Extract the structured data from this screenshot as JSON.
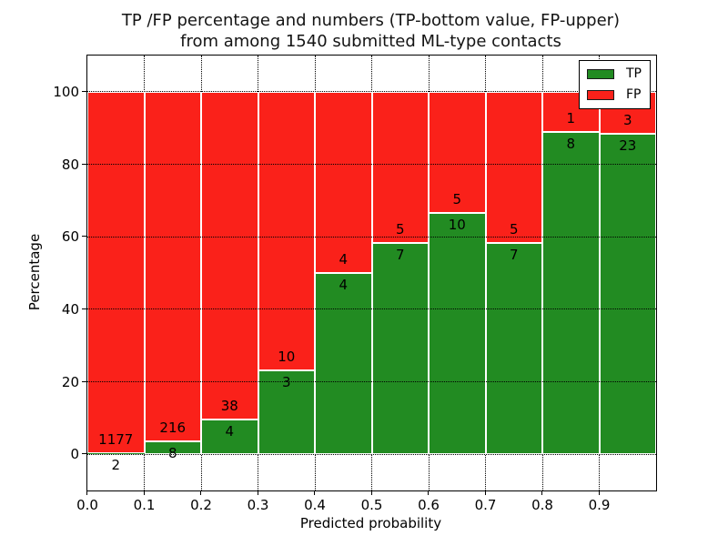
{
  "figure": {
    "title_line1": "TP /FP percentage and numbers (TP-bottom value, FP-upper)",
    "title_line2": "from among 1540 submitted ML-type contacts"
  },
  "chart_data": {
    "type": "bar",
    "stacked": true,
    "title": "TP /FP percentage and numbers (TP-bottom value, FP-upper)\nfrom among 1540 submitted ML-type contacts",
    "xlabel": "Predicted probability",
    "ylabel": "Percentage",
    "xlim": [
      0.0,
      1.0
    ],
    "ylim": [
      -10,
      110
    ],
    "x_bin_width": 0.1,
    "x_bin_starts": [
      0.0,
      0.1,
      0.2,
      0.3,
      0.4,
      0.5,
      0.6,
      0.7,
      0.8,
      0.9
    ],
    "x_tick_labels": [
      "0.0",
      "0.1",
      "0.2",
      "0.3",
      "0.4",
      "0.5",
      "0.6",
      "0.7",
      "0.8",
      "0.9"
    ],
    "y_ticks": [
      0,
      20,
      40,
      60,
      80,
      100
    ],
    "grid": {
      "visible": true,
      "style": "dotted",
      "color": "#000000"
    },
    "bar_edge_color": "#ffffff",
    "series": [
      {
        "name": "TP",
        "color": "#228b22",
        "counts": [
          2,
          8,
          4,
          3,
          4,
          7,
          10,
          7,
          8,
          23
        ],
        "percent_of_bin": [
          0.17,
          3.57,
          9.52,
          23.08,
          50.0,
          58.33,
          66.67,
          58.33,
          88.89,
          88.46
        ]
      },
      {
        "name": "FP",
        "color": "#fa211a",
        "counts": [
          1177,
          216,
          38,
          10,
          4,
          5,
          5,
          5,
          1,
          3
        ],
        "percent_of_bin": [
          99.83,
          96.43,
          90.48,
          76.92,
          50.0,
          41.67,
          33.33,
          41.67,
          11.11,
          11.54
        ]
      }
    ],
    "total_submitted": 1540,
    "legend": {
      "position": "upper right",
      "entries": [
        {
          "label": "TP",
          "color": "#228b22"
        },
        {
          "label": "FP",
          "color": "#fa211a"
        }
      ]
    }
  }
}
